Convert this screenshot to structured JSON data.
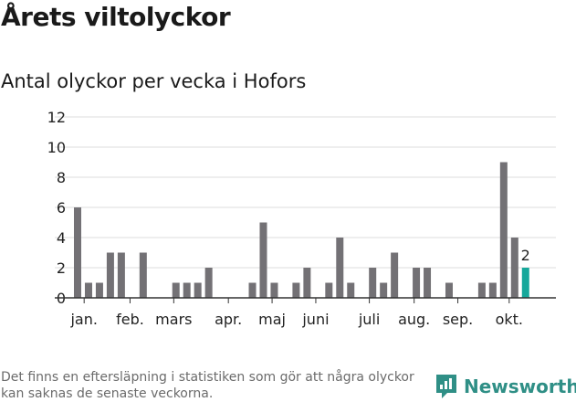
{
  "title": "Årets viltolyckor",
  "subtitle": "Antal olyckor per vecka i Hofors",
  "footnote": "Det finns en eftersläpning i statistiken som gör att några olyckor kan saknas de senaste veckorna.",
  "brand": "Newsworthy",
  "colors": {
    "bar": "#737175",
    "highlight": "#16a89b",
    "grid": "#dedede",
    "axis": "#333333",
    "brand": "#2f8f86"
  },
  "chart_data": {
    "type": "bar",
    "title": "Antal olyckor per vecka i Hofors",
    "xlabel": "",
    "ylabel": "",
    "ylim": [
      0,
      12
    ],
    "yticks": [
      0,
      2,
      4,
      6,
      8,
      10,
      12
    ],
    "grid": true,
    "x": [
      1,
      2,
      3,
      4,
      5,
      6,
      7,
      8,
      9,
      10,
      11,
      12,
      13,
      14,
      15,
      16,
      17,
      18,
      19,
      20,
      21,
      22,
      23,
      24,
      25,
      26,
      27,
      28,
      29,
      30,
      31,
      32,
      33,
      34,
      35,
      36,
      37,
      38,
      39,
      40,
      41,
      42
    ],
    "values": [
      6,
      1,
      1,
      3,
      3,
      0,
      3,
      0,
      0,
      1,
      1,
      1,
      2,
      0,
      0,
      0,
      1,
      5,
      1,
      0,
      1,
      2,
      0,
      1,
      4,
      1,
      0,
      2,
      1,
      3,
      0,
      2,
      2,
      0,
      1,
      0,
      0,
      1,
      1,
      9,
      4,
      2
    ],
    "highlight_last": true,
    "data_labels": [
      {
        "index": 41,
        "text": "2"
      }
    ],
    "month_labels": [
      {
        "label": "jan.",
        "week": 1.6
      },
      {
        "label": "feb.",
        "week": 5.8
      },
      {
        "label": "mars",
        "week": 9.8
      },
      {
        "label": "apr.",
        "week": 14.8
      },
      {
        "label": "maj",
        "week": 18.8
      },
      {
        "label": "juni",
        "week": 22.8
      },
      {
        "label": "juli",
        "week": 27.7
      },
      {
        "label": "aug.",
        "week": 31.8
      },
      {
        "label": "sep.",
        "week": 35.8
      },
      {
        "label": "okt.",
        "week": 40.5
      }
    ]
  }
}
